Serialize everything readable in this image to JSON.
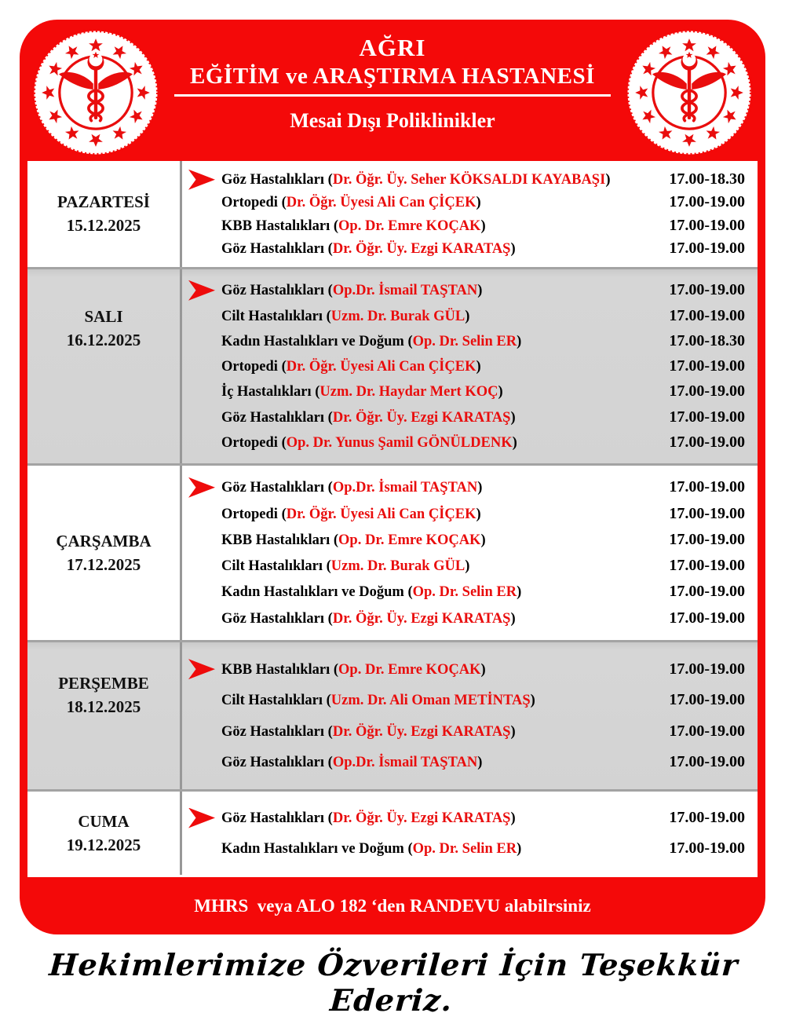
{
  "colors": {
    "poster_red": "#f40909",
    "text_red": "#e90d0d",
    "shaded_row_gray": "#d3d3d3",
    "white": "#ffffff"
  },
  "header": {
    "title_line1": "AĞRI",
    "title_line2": "EĞİTİM ve ARAŞTIRMA HASTANESİ",
    "subtitle": "Mesai Dışı Poliklinikler",
    "logo_name": "saglik-bakanligi-caduceus-emblem"
  },
  "schedule": {
    "sections": [
      {
        "day": "PAZARTESİ",
        "date": "15.12.2025",
        "shaded": false,
        "entries": [
          {
            "clinic": "Göz Hastalıkları",
            "doctor": "Dr. Öğr. Üy. Seher KÖKSALDI KAYABAŞI",
            "time": "17.00-18.30"
          },
          {
            "clinic": "Ortopedi",
            "doctor": "Dr. Öğr. Üyesi  Ali Can ÇİÇEK",
            "time": "17.00-19.00"
          },
          {
            "clinic": "KBB Hastalıkları",
            "doctor": "Op. Dr. Emre KOÇAK",
            "time": "17.00-19.00"
          },
          {
            "clinic": "Göz Hastalıkları",
            "doctor": "Dr. Öğr. Üy. Ezgi KARATAŞ",
            "time": "17.00-19.00"
          }
        ]
      },
      {
        "day": "SALI",
        "date": "16.12.2025",
        "shaded": true,
        "entries": [
          {
            "clinic": "Göz Hastalıkları",
            "doctor": "Op.Dr. İsmail TAŞTAN",
            "time": "17.00-19.00"
          },
          {
            "clinic": "Cilt Hastalıkları",
            "doctor": "Uzm. Dr. Burak GÜL",
            "time": "17.00-19.00"
          },
          {
            "clinic": "Kadın Hastalıkları ve Doğum",
            "doctor": "Op. Dr. Selin ER",
            "time": "17.00-18.30"
          },
          {
            "clinic": "Ortopedi",
            "doctor": "Dr. Öğr. Üyesi  Ali Can ÇİÇEK",
            "time": "17.00-19.00"
          },
          {
            "clinic": "İç Hastalıkları",
            "doctor": "Uzm. Dr. Haydar Mert KOÇ",
            "time": "17.00-19.00"
          },
          {
            "clinic": "Göz Hastalıkları",
            "doctor": "Dr. Öğr. Üy. Ezgi KARATAŞ",
            "time": "17.00-19.00"
          },
          {
            "clinic": "Ortopedi",
            "doctor": "Op. Dr. Yunus Şamil GÖNÜLDENK",
            "time": "17.00-19.00"
          }
        ]
      },
      {
        "day": "ÇARŞAMBA",
        "date": "17.12.2025",
        "shaded": false,
        "entries": [
          {
            "clinic": "Göz Hastalıkları",
            "doctor": "Op.Dr. İsmail TAŞTAN",
            "time": "17.00-19.00"
          },
          {
            "clinic": "Ortopedi",
            "doctor": "Dr. Öğr. Üyesi  Ali Can ÇİÇEK",
            "time": "17.00-19.00"
          },
          {
            "clinic": "KBB Hastalıkları",
            "doctor": "Op. Dr. Emre KOÇAK",
            "time": "17.00-19.00"
          },
          {
            "clinic": "Cilt Hastalıkları",
            "doctor": "Uzm. Dr. Burak GÜL",
            "time": "17.00-19.00"
          },
          {
            "clinic": "Kadın Hastalıkları ve Doğum",
            "doctor": "Op. Dr. Selin ER",
            "time": "17.00-19.00"
          },
          {
            "clinic": "Göz Hastalıkları",
            "doctor": "Dr. Öğr. Üy. Ezgi KARATAŞ",
            "time": "17.00-19.00"
          }
        ]
      },
      {
        "day": "PERŞEMBE",
        "date": "18.12.2025",
        "shaded": true,
        "entries": [
          {
            "clinic": "KBB Hastalıkları",
            "doctor": "Op. Dr. Emre KOÇAK",
            "time": "17.00-19.00"
          },
          {
            "clinic": "Cilt Hastalıkları",
            "doctor": "Uzm. Dr. Ali Oman METİNTAŞ",
            "time": "17.00-19.00"
          },
          {
            "clinic": "Göz Hastalıkları",
            "doctor": "Dr. Öğr. Üy. Ezgi KARATAŞ",
            "time": "17.00-19.00"
          },
          {
            "clinic": "Göz Hastalıkları",
            "doctor": "Op.Dr. İsmail TAŞTAN",
            "time": "17.00-19.00"
          }
        ]
      },
      {
        "day": "CUMA",
        "date": "19.12.2025",
        "shaded": false,
        "entries": [
          {
            "clinic": "Göz Hastalıkları",
            "doctor": "Dr. Öğr. Üy. Ezgi KARATAŞ",
            "time": "17.00-19.00"
          },
          {
            "clinic": "Kadın Hastalıkları ve Doğum",
            "doctor": "Op. Dr. Selin ER",
            "time": "17.00-19.00"
          }
        ]
      }
    ]
  },
  "footer": {
    "appointment_note": "MHRS  veya ALO 182 ‘den RANDEVU alabilrsiniz"
  },
  "closing_message": "Hekimlerimize Özverileri İçin Teşekkür Ederiz."
}
